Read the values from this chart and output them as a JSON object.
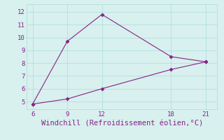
{
  "line1_x": [
    6,
    9,
    12,
    18,
    21
  ],
  "line1_y": [
    4.8,
    9.7,
    11.8,
    8.5,
    8.1
  ],
  "line2_x": [
    6,
    9,
    12,
    18,
    21
  ],
  "line2_y": [
    4.8,
    5.2,
    6.0,
    7.5,
    8.1
  ],
  "line_color": "#882288",
  "marker": "D",
  "marker_size": 2.5,
  "xlabel": "Windchill (Refroidissement éolien,°C)",
  "xlabel_color": "#882288",
  "xlabel_fontsize": 7.5,
  "bg_color": "#d8f0ee",
  "grid_color": "#aadddd",
  "tick_color": "#882288",
  "xlim": [
    5.5,
    22.0
  ],
  "ylim": [
    4.4,
    12.6
  ],
  "xticks": [
    6,
    9,
    12,
    18,
    21
  ],
  "yticks": [
    5,
    6,
    7,
    8,
    9,
    10,
    11,
    12
  ]
}
